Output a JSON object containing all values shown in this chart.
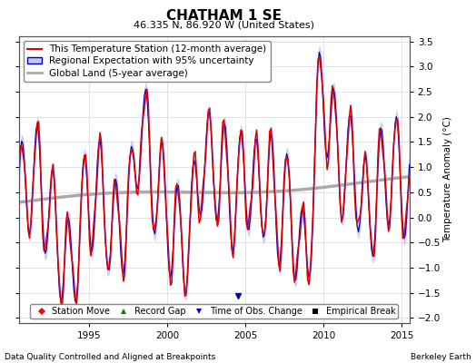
{
  "title": "CHATHAM 1 SE",
  "subtitle": "46.335 N, 86.920 W (United States)",
  "xlabel_bottom": "Data Quality Controlled and Aligned at Breakpoints",
  "xlabel_right": "Berkeley Earth",
  "ylabel": "Temperature Anomaly (°C)",
  "xlim": [
    1990.5,
    2015.5
  ],
  "ylim": [
    -2.1,
    3.6
  ],
  "yticks": [
    -2,
    -1.5,
    -1,
    -0.5,
    0,
    0.5,
    1,
    1.5,
    2,
    2.5,
    3,
    3.5
  ],
  "xticks": [
    1995,
    2000,
    2005,
    2010,
    2015
  ],
  "background_color": "#ffffff",
  "plot_bg_color": "#ffffff",
  "red_line_color": "#dd0000",
  "blue_line_color": "#0000cc",
  "blue_fill_color": "#c0c8f0",
  "gray_line_color": "#aaaaaa",
  "grid_color": "#dddddd",
  "title_fontsize": 11,
  "subtitle_fontsize": 8,
  "label_fontsize": 7.5,
  "tick_fontsize": 7.5,
  "legend_fontsize": 7.5,
  "obs_change_year": 2004.5,
  "obs_change_value": -1.55
}
